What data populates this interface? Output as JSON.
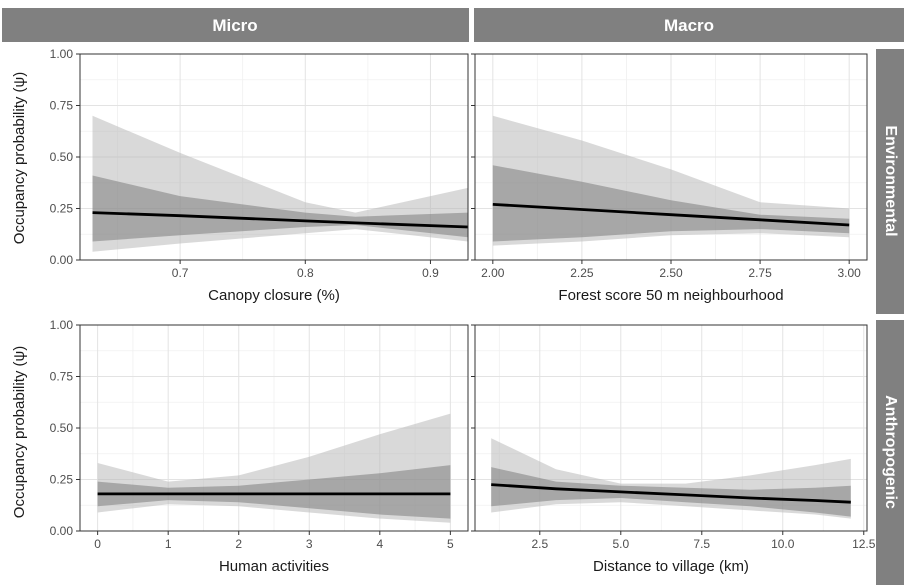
{
  "figure": {
    "y_axis_title": "Occupancy probability (ψ)",
    "column_strips": [
      "Micro",
      "Macro"
    ],
    "row_strips": [
      "Environmental",
      "Anthropogenic"
    ]
  },
  "chart_data": [
    {
      "type": "line",
      "facet": "Environmental / Micro",
      "xlabel": "Canopy closure (%)",
      "ylabel": "Occupancy probability (ψ)",
      "xlim": [
        0.62,
        0.93
      ],
      "ylim": [
        0,
        1
      ],
      "x_ticks": [
        0.7,
        0.8,
        0.9
      ],
      "x_tick_labels": [
        "0.7",
        "0.8",
        "0.9"
      ],
      "y_ticks": [
        0,
        0.25,
        0.5,
        0.75,
        1
      ],
      "y_tick_labels": [
        "0.00",
        "0.25",
        "0.50",
        "0.75",
        "1.00"
      ],
      "grid": true,
      "x": [
        0.63,
        0.7,
        0.8,
        0.84,
        0.93
      ],
      "mean": [
        0.23,
        0.215,
        0.19,
        0.18,
        0.16
      ],
      "ci_inner": {
        "lower": [
          0.09,
          0.12,
          0.16,
          0.17,
          0.11
        ],
        "upper": [
          0.41,
          0.31,
          0.23,
          0.21,
          0.23
        ]
      },
      "ci_outer": {
        "lower": [
          0.04,
          0.08,
          0.13,
          0.15,
          0.09
        ],
        "upper": [
          0.7,
          0.52,
          0.28,
          0.23,
          0.35
        ]
      }
    },
    {
      "type": "line",
      "facet": "Environmental / Macro",
      "xlabel": "Forest score 50 m neighbourhood",
      "ylabel": "Occupancy probability (ψ)",
      "xlim": [
        1.95,
        3.05
      ],
      "ylim": [
        0,
        1
      ],
      "x_ticks": [
        2,
        2.25,
        2.5,
        2.75,
        3
      ],
      "x_tick_labels": [
        "2.00",
        "2.25",
        "2.50",
        "2.75",
        "3.00"
      ],
      "y_ticks": [
        0,
        0.25,
        0.5,
        0.75,
        1
      ],
      "y_tick_labels": [
        "0.00",
        "0.25",
        "0.50",
        "0.75",
        "1.00"
      ],
      "grid": true,
      "x": [
        2.0,
        2.25,
        2.5,
        2.75,
        3.0
      ],
      "mean": [
        0.27,
        0.245,
        0.22,
        0.195,
        0.17
      ],
      "ci_inner": {
        "lower": [
          0.09,
          0.11,
          0.14,
          0.15,
          0.13
        ],
        "upper": [
          0.46,
          0.38,
          0.29,
          0.22,
          0.2
        ]
      },
      "ci_outer": {
        "lower": [
          0.07,
          0.09,
          0.12,
          0.13,
          0.11
        ],
        "upper": [
          0.7,
          0.58,
          0.44,
          0.28,
          0.25
        ]
      }
    },
    {
      "type": "line",
      "facet": "Anthropogenic / Micro",
      "xlabel": "Human activities",
      "ylabel": "Occupancy probability (ψ)",
      "xlim": [
        -0.25,
        5.25
      ],
      "ylim": [
        0,
        1
      ],
      "x_ticks": [
        0,
        1,
        2,
        3,
        4,
        5
      ],
      "x_tick_labels": [
        "0",
        "1",
        "2",
        "3",
        "4",
        "5"
      ],
      "y_ticks": [
        0,
        0.25,
        0.5,
        0.75,
        1
      ],
      "y_tick_labels": [
        "0.00",
        "0.25",
        "0.50",
        "0.75",
        "1.00"
      ],
      "grid": true,
      "x": [
        0,
        1,
        2,
        3,
        4,
        5
      ],
      "mean": [
        0.18,
        0.18,
        0.18,
        0.18,
        0.18,
        0.18
      ],
      "ci_inner": {
        "lower": [
          0.12,
          0.15,
          0.14,
          0.11,
          0.08,
          0.06
        ],
        "upper": [
          0.24,
          0.21,
          0.22,
          0.25,
          0.28,
          0.32
        ]
      },
      "ci_outer": {
        "lower": [
          0.09,
          0.13,
          0.12,
          0.09,
          0.06,
          0.04
        ],
        "upper": [
          0.33,
          0.24,
          0.27,
          0.36,
          0.47,
          0.57
        ]
      }
    },
    {
      "type": "line",
      "facet": "Anthropogenic / Macro",
      "xlabel": "Distance to village (km)",
      "ylabel": "Occupancy probability (ψ)",
      "xlim": [
        0.5,
        12.6
      ],
      "ylim": [
        0,
        1
      ],
      "x_ticks": [
        2.5,
        5,
        7.5,
        10,
        12.5
      ],
      "x_tick_labels": [
        "2.5",
        "5.0",
        "7.5",
        "10.0",
        "12.5"
      ],
      "y_ticks": [
        0,
        0.25,
        0.5,
        0.75,
        1
      ],
      "y_tick_labels": [
        "0.00",
        "0.25",
        "0.50",
        "0.75",
        "1.00"
      ],
      "grid": true,
      "x": [
        1,
        3,
        5,
        7,
        9,
        11,
        12.1
      ],
      "mean": [
        0.225,
        0.205,
        0.19,
        0.175,
        0.16,
        0.148,
        0.14
      ],
      "ci_inner": {
        "lower": [
          0.12,
          0.15,
          0.16,
          0.14,
          0.12,
          0.09,
          0.07
        ],
        "upper": [
          0.31,
          0.24,
          0.22,
          0.21,
          0.2,
          0.21,
          0.22
        ]
      },
      "ci_outer": {
        "lower": [
          0.09,
          0.13,
          0.14,
          0.12,
          0.1,
          0.08,
          0.06
        ],
        "upper": [
          0.45,
          0.3,
          0.23,
          0.23,
          0.27,
          0.32,
          0.35
        ]
      }
    }
  ]
}
